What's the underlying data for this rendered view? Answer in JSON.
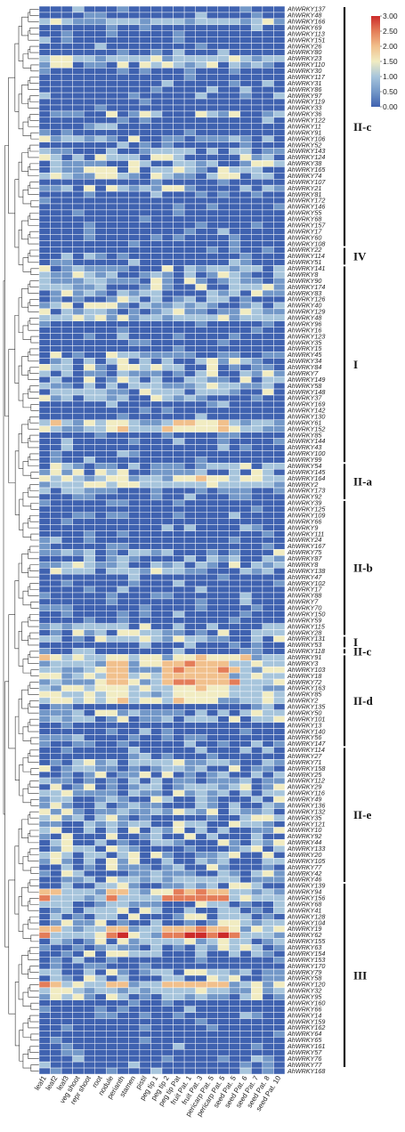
{
  "chart_data": {
    "type": "heatmap",
    "title": "",
    "columns": [
      "leaf1",
      "leaf2",
      "leaf3",
      "veg shoot",
      "repr shoot",
      "root",
      "nodule",
      "perianth",
      "stamen",
      "pistil",
      "peg tip 1",
      "peg tip 2",
      "peg tip Pat",
      "fruit Pat. 1",
      "fruit Pat. 3",
      "pericarp Pat. 5",
      "pericarp Pat. 5",
      "seed Pat. 5",
      "seed Pat. 6",
      "seed Pat. 7",
      "seed Pat. 8",
      "seed Pat. 10"
    ],
    "rows": [
      "AhWRKY137",
      "AhWRKY48",
      "AhWRKY166",
      "AhWRKY69",
      "AhWRKY113",
      "AhWRKY151",
      "AhWRKY26",
      "AhWRKY80",
      "AhWRKY23",
      "AhWRKY110",
      "AhWRKY30",
      "AhWRKY117",
      "AhWRKY31",
      "AhWRKY86",
      "AhWRKY97",
      "AhWRKY119",
      "AhWRKY33",
      "AhWRKY36",
      "AhWRKY122",
      "AhWRKY11",
      "AhWRKY91",
      "AhWRKY106",
      "AhWRKY52",
      "AhWRKY143",
      "AhWRKY124",
      "AhWRKY38",
      "AhWRKY165",
      "AhWRKY74",
      "AhWRKY107",
      "AhWRKY21",
      "AhWRKY81",
      "AhWRKY172",
      "AhWRKY146",
      "AhWRKY55",
      "AhWRKY68",
      "AhWRKY157",
      "AhWRKY17",
      "AhWRKY60",
      "AhWRKY108",
      "AhWRKY22",
      "AhWRKY114",
      "AhWRKY51",
      "AhWRKY141",
      "AhWRKY8",
      "AhWRKY90",
      "AhWRKY174",
      "AhWRKY83",
      "AhWRKY126",
      "AhWRKY40",
      "AhWRKY129",
      "AhWRKY48",
      "AhWRKY96",
      "AhWRKY16",
      "AhWRKY123",
      "AhWRKY35",
      "AhWRKY15",
      "AhWRKY45",
      "AhWRKY34",
      "AhWRKY84",
      "AhWRKY7",
      "AhWRKY149",
      "AhWRKY58",
      "AhWRKY148",
      "AhWRKY37",
      "AhWRKY169",
      "AhWRKY142",
      "AhWRKY130",
      "AhWRKY61",
      "AhWRKY152",
      "AhWRKY85",
      "AhWRKY144",
      "AhWRKY43",
      "AhWRKY100",
      "AhWRKY99",
      "AhWRKY54",
      "AhWRKY145",
      "AhWRKY164",
      "AhWRKY2",
      "AhWRKY173",
      "AhWRKY92",
      "AhWRKY39",
      "AhWRKY125",
      "AhWRKY109",
      "AhWRKY66",
      "AhWRKY9",
      "AhWRKY111",
      "AhWRKY24",
      "AhWRKY167",
      "AhWRKY75",
      "AhWRKY87",
      "AhWRKY8",
      "AhWRKY138",
      "AhWRKY47",
      "AhWRKY102",
      "AhWRKY17",
      "AhWRKY88",
      "AhWRKY7",
      "AhWRKY70",
      "AhWRKY150",
      "AhWRKY59",
      "AhWRKY115",
      "AhWRKY28",
      "AhWRKY131",
      "AhWRKY53",
      "AhWRKY118",
      "AhWRKY91",
      "AhWRKY3",
      "AhWRKY103",
      "AhWRKY18",
      "AhWRKY72",
      "AhWRKY163",
      "AhWRKY85",
      "AhWRKY2",
      "AhWRKY135",
      "AhWRKY50",
      "AhWRKY101",
      "AhWRKY13",
      "AhWRKY140",
      "AhWRKY56",
      "AhWRKY147",
      "AhWRKY114",
      "AhWRKY27",
      "AhWRKY71",
      "AhWRKY158",
      "AhWRKY25",
      "AhWRKY112",
      "AhWRKY29",
      "AhWRKY116",
      "AhWRKY49",
      "AhWRKY136",
      "AhWRKY132",
      "AhWRKY35",
      "AhWRKY121",
      "AhWRKY10",
      "AhWRKY92",
      "AhWRKY44",
      "AhWRKY133",
      "AhWRKY20",
      "AhWRKY105",
      "AhWRKY77",
      "AhWRKY42",
      "AhWRKY46",
      "AhWRKY139",
      "AhWRKY94",
      "AhWRKY156",
      "AhWRKY68",
      "AhWRKY41",
      "AhWRKY128",
      "AhWRKY104",
      "AhWRKY19",
      "AhWRKY62",
      "AhWRKY155",
      "AhWRKY63",
      "AhWRKY154",
      "AhWRKY153",
      "AhWRKY170",
      "AhWRKY79",
      "AhWRKY58",
      "AhWRKY120",
      "AhWRKY32",
      "AhWRKY95",
      "AhWRKY160",
      "AhWRKY66",
      "AhWRKY14",
      "AhWRKY159",
      "AhWRKY162",
      "AhWRKY64",
      "AhWRKY65",
      "AhWRKY161",
      "AhWRKY57",
      "AhWRKY76",
      "AhWRKY77",
      "AhWRKY168"
    ],
    "groups": [
      {
        "label": "II-c",
        "start": 0,
        "end": 38
      },
      {
        "label": "IV",
        "start": 39,
        "end": 41
      },
      {
        "label": "I",
        "start": 42,
        "end": 73
      },
      {
        "label": "II-a",
        "start": 74,
        "end": 79
      },
      {
        "label": "II-b",
        "start": 80,
        "end": 101
      },
      {
        "label": "I",
        "start": 102,
        "end": 103
      },
      {
        "label": "II-c",
        "start": 104,
        "end": 104
      },
      {
        "label": "II-d",
        "start": 105,
        "end": 119
      },
      {
        "label": "II-e",
        "start": 120,
        "end": 141
      },
      {
        "label": "III",
        "start": 142,
        "end": 171
      }
    ],
    "scale": {
      "min": 0,
      "max": 3,
      "ticks": [
        "3.00",
        "2.50",
        "2.00",
        "1.50",
        "1.00",
        "0.50",
        "0.00"
      ],
      "colors": [
        "#3f62b0",
        "#7398c8",
        "#a7c5dc",
        "#f1ecc2",
        "#f1c08c",
        "#e47d59",
        "#cc2b2a"
      ]
    },
    "hot_rows": [
      {
        "row": 2,
        "lvl": 2,
        "cols": [
          15,
          16
        ],
        "base": 0
      },
      {
        "row": 8,
        "lvl": 2,
        "cols": [
          13,
          14,
          15,
          16
        ],
        "base": 0
      },
      {
        "row": 50,
        "lvl": 2,
        "cols": [
          19,
          20,
          21
        ],
        "base": 0
      },
      {
        "row": 67,
        "lvl": 3,
        "cols": [
          1,
          6,
          7,
          12,
          13,
          14,
          15,
          16
        ],
        "base": 1
      },
      {
        "row": 68,
        "lvl": 3,
        "cols": [
          6,
          7,
          11,
          12,
          13,
          14,
          15,
          16,
          17
        ],
        "base": 1
      },
      {
        "row": 76,
        "lvl": 3,
        "cols": [
          6,
          7,
          12,
          13,
          14,
          15,
          16
        ],
        "base": 1
      },
      {
        "row": 77,
        "lvl": 2,
        "cols": [
          6,
          7,
          13,
          14,
          15,
          16
        ],
        "base": 1
      },
      {
        "row": 105,
        "lvl": 3,
        "cols": [
          0,
          6,
          7,
          12,
          13,
          14,
          15,
          16,
          17,
          18
        ],
        "base": 1
      },
      {
        "row": 106,
        "lvl": 4,
        "cols": [
          6,
          7,
          11,
          12,
          13,
          14,
          15,
          16
        ],
        "base": 1
      },
      {
        "row": 107,
        "lvl": 4,
        "cols": [
          6,
          7,
          11,
          12,
          13,
          14,
          15,
          16,
          17
        ],
        "base": 1
      },
      {
        "row": 108,
        "lvl": 4,
        "cols": [
          6,
          7,
          11,
          12,
          13,
          14,
          15,
          16
        ],
        "base": 1
      },
      {
        "row": 109,
        "lvl": 4,
        "cols": [
          6,
          7,
          11,
          12,
          13,
          14,
          15,
          16,
          17
        ],
        "base": 1
      },
      {
        "row": 110,
        "lvl": 3,
        "cols": [
          6,
          7,
          12,
          13,
          14,
          15,
          16
        ],
        "base": 1
      },
      {
        "row": 111,
        "lvl": 3,
        "cols": [
          6,
          7,
          12,
          13,
          14,
          15,
          16
        ],
        "base": 1
      },
      {
        "row": 112,
        "lvl": 3,
        "cols": [
          6,
          7,
          12,
          13,
          14,
          15
        ],
        "base": 1
      },
      {
        "row": 143,
        "lvl": 4,
        "cols": [
          0,
          1,
          6,
          7,
          12,
          13,
          14,
          15,
          16
        ],
        "base": 1
      },
      {
        "row": 144,
        "lvl": 5,
        "cols": [
          0,
          6,
          11,
          12,
          13,
          14,
          15,
          16
        ],
        "base": 1
      },
      {
        "row": 149,
        "lvl": 4,
        "cols": [
          0,
          1,
          6,
          7,
          11,
          12,
          13,
          14,
          15,
          16
        ],
        "base": 1
      },
      {
        "row": 150,
        "lvl": 5,
        "cols": [
          0,
          6,
          7,
          11,
          12,
          13,
          14,
          15,
          16,
          17
        ],
        "base": 1
      },
      {
        "row": 158,
        "lvl": 4,
        "cols": [
          0,
          1,
          6,
          7,
          11,
          12,
          13,
          14,
          15,
          16
        ],
        "base": 1
      },
      {
        "row": 159,
        "lvl": 2,
        "cols": [
          13,
          14,
          15,
          16
        ],
        "base": 1
      }
    ],
    "warm_rows": [
      9,
      17,
      21,
      23,
      24,
      25,
      26,
      27,
      29,
      42,
      43,
      44,
      45,
      46,
      47,
      48,
      49,
      56,
      57,
      58,
      59,
      60,
      61,
      62,
      63,
      74,
      75,
      78,
      88,
      89,
      90,
      91,
      100,
      101,
      102,
      114,
      115,
      122,
      123,
      124,
      125,
      126,
      127,
      128,
      129,
      130,
      131,
      132,
      133,
      134,
      135,
      136,
      137,
      138,
      139,
      140,
      141,
      142,
      145,
      146,
      147,
      148,
      151,
      152,
      153,
      156,
      157,
      160
    ]
  }
}
